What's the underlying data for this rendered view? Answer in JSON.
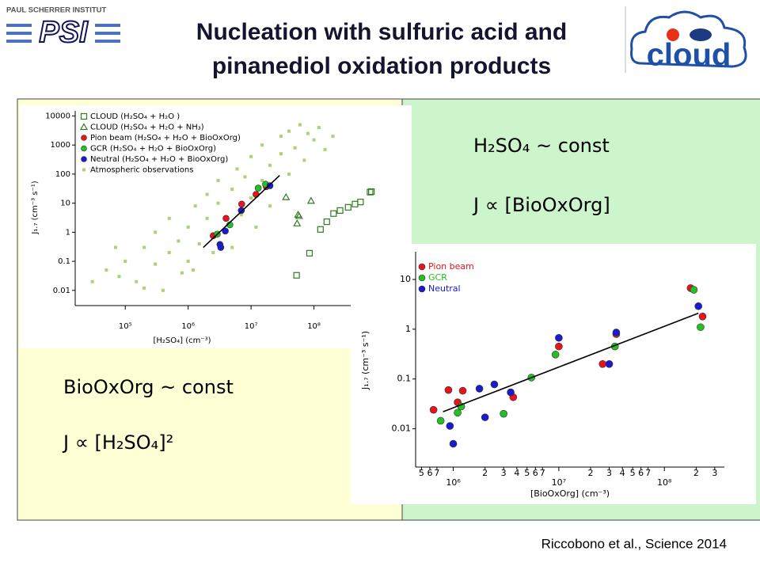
{
  "header": {
    "institute": "PAUL SCHERRER INSTITUT",
    "logo": "PSI",
    "title_line1": "Nucleation with sulfuric acid and",
    "title_line2": "pinanediol oxidation products",
    "partner_logo": "cloud"
  },
  "left_panel": {
    "line1": "BioOxOrg ~ const",
    "line2": "J ∝ [H₂SO₄]²"
  },
  "right_panel": {
    "line1": "H₂SO₄ ~ const",
    "line2": "J ∝ [BioOxOrg]"
  },
  "citation": "Riccobono et al., Science 2014",
  "chart_data": [
    {
      "type": "scatter",
      "log_x": true,
      "log_y": true,
      "x_label": "[H₂SO₄] (cm⁻³)",
      "y_label": "J₁.₇ (cm⁻³ s⁻¹)",
      "xlim": [
        16000,
        1500000000
      ],
      "ylim": [
        0.003,
        15000
      ],
      "xticks": [
        {
          "value": 100000,
          "label": "10⁵"
        },
        {
          "value": 1000000,
          "label": "10⁶"
        },
        {
          "value": 10000000,
          "label": "10⁷"
        },
        {
          "value": 100000000,
          "label": "10⁸"
        }
      ],
      "yticks": [
        0.01,
        0.1,
        1,
        10,
        100,
        1000,
        10000
      ],
      "series": [
        {
          "name": "Atmospheric observations",
          "color": "#a6d672",
          "marker": "small-square",
          "x": [
            30000,
            50000,
            80000,
            100000,
            150000,
            200000,
            300000,
            300000,
            500000,
            500000,
            700000,
            800000,
            1000000,
            1000000,
            1300000,
            1500000,
            2000000,
            2000000,
            2500000,
            3000000,
            3000000,
            4000000,
            5000000,
            5000000,
            6000000,
            7000000,
            8000000,
            10000000,
            10000000,
            12000000,
            15000000,
            15000000,
            20000000,
            20000000,
            30000000,
            30000000,
            40000000,
            40000000,
            50000000,
            60000000,
            70000000,
            80000000,
            100000000,
            120000000,
            150000000,
            200000000,
            70000,
            400000,
            200000,
            1200000
          ],
          "values": [
            0.02,
            0.05,
            0.03,
            0.1,
            0.02,
            0.3,
            0.08,
            1,
            0.2,
            3,
            0.5,
            0.04,
            1.5,
            0.1,
            8,
            0.4,
            3,
            20,
            0.2,
            10,
            60,
            1,
            30,
            0.3,
            150,
            4,
            80,
            400,
            15,
            1.5,
            1000,
            60,
            200,
            8,
            2000,
            500,
            100,
            3000,
            800,
            5000,
            300,
            2500,
            1500,
            4000,
            700,
            2000,
            0.3,
            0.01,
            0.012,
            0.05
          ]
        },
        {
          "name": "CLOUD (H₂SO₄ + H₂O )",
          "color": "#2e7d1e",
          "marker": "open-square",
          "x": [
            53000000,
            85000000,
            127000000,
            160000000,
            205000000,
            260000000,
            350000000,
            450000000,
            550000000,
            780000000,
            820000000
          ],
          "values": [
            0.033,
            0.19,
            1.25,
            2.3,
            4.4,
            5.6,
            7.2,
            9.3,
            11,
            24,
            25
          ]
        },
        {
          "name": "CLOUD (H₂SO₄ + H₂O + NH₃)",
          "color": "#2e7d1e",
          "marker": "open-triangle",
          "x": [
            36000000,
            90000000,
            54000000,
            56000000,
            58000000
          ],
          "values": [
            16,
            12,
            2,
            4,
            3.6
          ]
        },
        {
          "name": "Pion beam (H₂SO₄ + H₂O + BioOxOrg)",
          "color": "#e8141c",
          "marker": "circle",
          "x": [
            2500000,
            4000000,
            7100000,
            12000000,
            17500000
          ],
          "values": [
            0.76,
            3,
            9.3,
            20,
            37
          ]
        },
        {
          "name": "GCR (H₂SO₄ + H₂O + BioOxOrg)",
          "color": "#22c020",
          "marker": "circle",
          "x": [
            2900000,
            4600000,
            13000000,
            17000000
          ],
          "values": [
            0.86,
            1.8,
            33,
            45
          ]
        },
        {
          "name": "Neutral (H₂SO₄ + H₂O + BioOxOrg)",
          "color": "#1a1ad0",
          "marker": "circle",
          "x": [
            3200000,
            3300000,
            3900000,
            7000000,
            20000000
          ],
          "values": [
            0.38,
            0.3,
            1.1,
            5.6,
            40
          ]
        }
      ],
      "fit": {
        "color": "#000000",
        "x": [
          1740000,
          28500000
        ],
        "values": [
          0.3,
          90
        ]
      }
    },
    {
      "type": "scatter",
      "log_x": true,
      "log_y": true,
      "x_label": "[BioOxOrg] (cm⁻³)",
      "y_label": "J₁.₇ (cm⁻³ s⁻¹)",
      "xlim": [
        440000,
        370000000
      ],
      "ylim": [
        0.0017,
        36
      ],
      "xticks": [
        {
          "value": 500000,
          "label": "5"
        },
        {
          "value": 600000,
          "label": "6"
        },
        {
          "value": 700000,
          "label": "7"
        },
        {
          "value": 1000000,
          "label": "10⁶"
        },
        {
          "value": 2000000,
          "label": "2"
        },
        {
          "value": 3000000,
          "label": "3"
        },
        {
          "value": 4000000,
          "label": "4"
        },
        {
          "value": 5000000,
          "label": "5"
        },
        {
          "value": 6000000,
          "label": "6"
        },
        {
          "value": 7000000,
          "label": "7"
        },
        {
          "value": 10000000,
          "label": "10⁷"
        },
        {
          "value": 20000000,
          "label": "2"
        },
        {
          "value": 30000000,
          "label": "3"
        },
        {
          "value": 40000000,
          "label": "4"
        },
        {
          "value": 50000000,
          "label": "5"
        },
        {
          "value": 60000000,
          "label": "6"
        },
        {
          "value": 70000000,
          "label": "7"
        },
        {
          "value": 100000000,
          "label": "10⁸"
        },
        {
          "value": 200000000,
          "label": "2"
        },
        {
          "value": 300000000,
          "label": "3"
        }
      ],
      "yticks": [
        0.01,
        0.1,
        1,
        10
      ],
      "series": [
        {
          "name": "Pion beam",
          "color": "#e8141c",
          "marker": "circle",
          "x": [
            650000,
            900000,
            1100000,
            1230000,
            3700000,
            10000000,
            26000000,
            35000000,
            177000000,
            230000000
          ],
          "values": [
            0.024,
            0.06,
            0.034,
            0.058,
            0.043,
            0.45,
            0.2,
            0.8,
            6.7,
            1.8
          ]
        },
        {
          "name": "GCR",
          "color": "#22c020",
          "marker": "circle",
          "x": [
            760000,
            1100000,
            1190000,
            3000000,
            5500000,
            9300000,
            34000000,
            190000000,
            220000000
          ],
          "values": [
            0.0145,
            0.021,
            0.028,
            0.02,
            0.107,
            0.31,
            0.45,
            6.2,
            1.1
          ]
        },
        {
          "name": "Neutral",
          "color": "#1a1ad0",
          "marker": "circle",
          "x": [
            930000,
            1000000,
            1770000,
            2000000,
            2450000,
            3500000,
            10000000,
            30000000,
            35000000,
            210000000
          ],
          "values": [
            0.0114,
            0.005,
            0.064,
            0.017,
            0.078,
            0.054,
            0.67,
            0.2,
            0.86,
            2.9
          ]
        }
      ],
      "fit": {
        "color": "#000000",
        "x": [
          800000,
          210000000
        ],
        "values": [
          0.022,
          2.1
        ]
      }
    }
  ]
}
